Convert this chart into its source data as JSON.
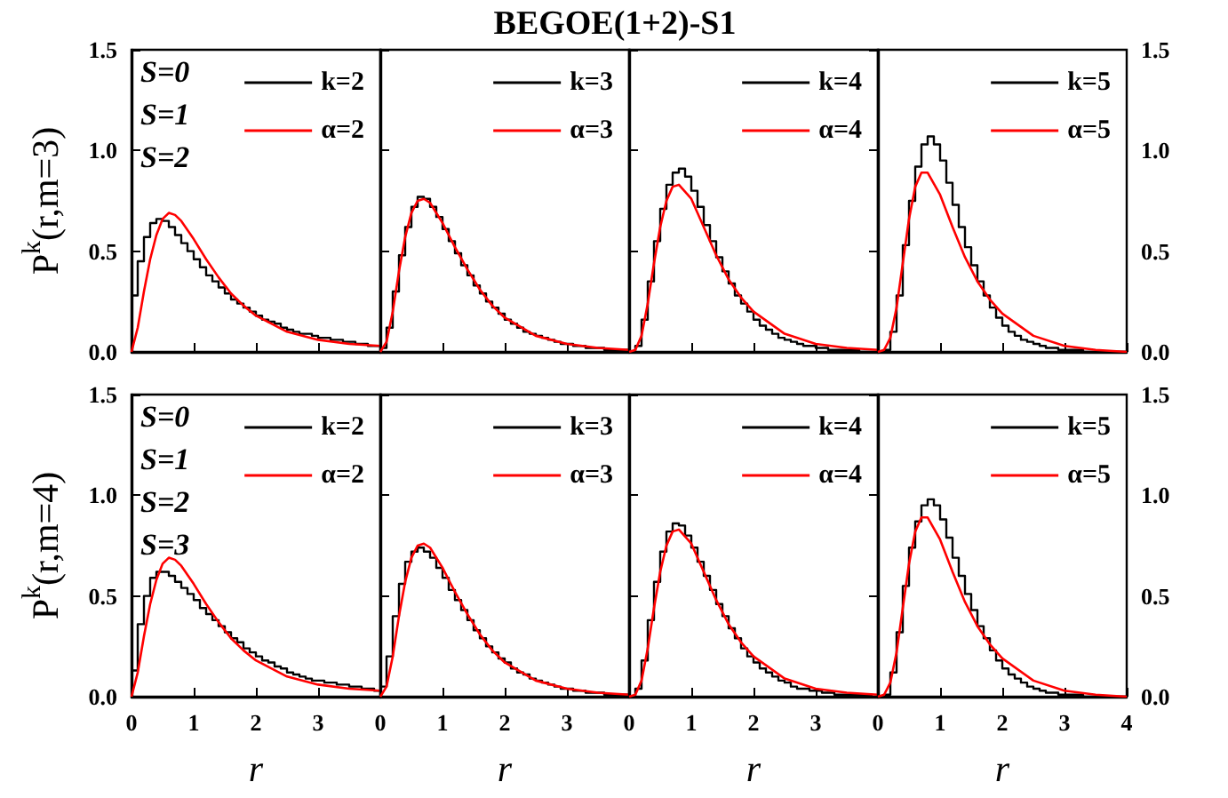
{
  "chart_data": [
    {
      "type": "histogram",
      "ylabel": "P$^{k}$(r,m=3)",
      "annotations": [
        "S=0",
        "S=1",
        "S=2"
      ],
      "legend": "top right",
      "tick_labels": "y",
      "xlim": [
        0,
        4
      ],
      "xticks": [
        0,
        1,
        2,
        3,
        4
      ],
      "ylim": [
        0,
        1.5
      ],
      "yticks": [
        {
          "value": 0,
          "label": "0.0"
        },
        {
          "value": 0.5,
          "label": "0.5"
        },
        {
          "value": 1,
          "label": "1.0"
        },
        {
          "value": 1.5,
          "label": "1.5"
        }
      ],
      "bins": [
        0,
        0.1,
        0.2,
        0.3,
        0.4,
        0.5,
        0.6,
        0.7,
        0.8,
        0.9,
        1,
        1.1,
        1.2,
        1.3,
        1.4,
        1.5,
        1.6,
        1.7,
        1.8,
        1.9,
        2,
        2.1,
        2.2,
        2.3,
        2.4,
        2.5,
        2.6,
        2.7,
        2.8,
        2.9,
        3,
        3.1,
        3.2,
        3.3,
        3.4,
        3.5,
        3.6,
        3.7,
        3.8,
        3.9,
        4
      ],
      "series": [
        {
          "name": "k=2",
          "color": "#000000",
          "values": [
            0.28,
            0.45,
            0.57,
            0.64,
            0.66,
            0.65,
            0.62,
            0.58,
            0.54,
            0.5,
            0.46,
            0.42,
            0.38,
            0.35,
            0.32,
            0.29,
            0.26,
            0.24,
            0.22,
            0.2,
            0.18,
            0.16,
            0.15,
            0.14,
            0.12,
            0.11,
            0.1,
            0.09,
            0.09,
            0.08,
            0.07,
            0.07,
            0.06,
            0.06,
            0.05,
            0.05,
            0.04,
            0.04,
            0.03,
            0.03
          ]
        },
        {
          "name": "α=2",
          "type": "line",
          "color": "#ff0000",
          "x": [
            0,
            0.1,
            0.2,
            0.3,
            0.4,
            0.5,
            0.6,
            0.7,
            0.8,
            1,
            1.2,
            1.4,
            1.6,
            1.8,
            2,
            2.5,
            3,
            3.5,
            4
          ],
          "values": [
            0,
            0.12,
            0.3,
            0.46,
            0.58,
            0.66,
            0.69,
            0.68,
            0.65,
            0.56,
            0.46,
            0.37,
            0.29,
            0.23,
            0.18,
            0.1,
            0.06,
            0.04,
            0.03
          ]
        }
      ]
    },
    {
      "type": "histogram",
      "title": "BEGOE(1+2)-S1",
      "legend": "top right",
      "tick_labels": false,
      "xlim": [
        0,
        4
      ],
      "xticks": [
        0,
        1,
        2,
        3,
        4
      ],
      "ylim": [
        0,
        1.5
      ],
      "yticks": [
        0,
        0.5,
        1,
        1.5
      ],
      "bins": [
        0,
        0.1,
        0.2,
        0.3,
        0.4,
        0.5,
        0.6,
        0.7,
        0.8,
        0.9,
        1,
        1.1,
        1.2,
        1.3,
        1.4,
        1.5,
        1.6,
        1.7,
        1.8,
        1.9,
        2,
        2.1,
        2.2,
        2.3,
        2.4,
        2.5,
        2.6,
        2.7,
        2.8,
        2.9,
        3,
        3.1,
        3.2,
        3.3,
        3.4,
        3.5,
        3.6,
        3.7,
        3.8,
        3.9,
        4
      ],
      "series": [
        {
          "name": "k=3",
          "color": "#000000",
          "values": [
            0.02,
            0.12,
            0.3,
            0.48,
            0.62,
            0.72,
            0.77,
            0.76,
            0.72,
            0.67,
            0.61,
            0.55,
            0.49,
            0.43,
            0.38,
            0.33,
            0.29,
            0.25,
            0.22,
            0.19,
            0.16,
            0.14,
            0.12,
            0.1,
            0.09,
            0.08,
            0.07,
            0.06,
            0.05,
            0.04,
            0.04,
            0.03,
            0.03,
            0.02,
            0.02,
            0.02,
            0.01,
            0.01,
            0.01,
            0.01
          ]
        },
        {
          "name": "α=3",
          "type": "line",
          "color": "#ff0000",
          "x": [
            0,
            0.1,
            0.2,
            0.3,
            0.4,
            0.5,
            0.6,
            0.7,
            0.8,
            1,
            1.2,
            1.4,
            1.6,
            1.8,
            2,
            2.5,
            3,
            3.5,
            4
          ],
          "values": [
            0,
            0.05,
            0.2,
            0.4,
            0.57,
            0.69,
            0.75,
            0.76,
            0.74,
            0.64,
            0.52,
            0.41,
            0.31,
            0.23,
            0.17,
            0.08,
            0.04,
            0.02,
            0.01
          ]
        }
      ]
    },
    {
      "type": "histogram",
      "legend": "top right",
      "tick_labels": false,
      "xlim": [
        0,
        4
      ],
      "xticks": [
        0,
        1,
        2,
        3,
        4
      ],
      "ylim": [
        0,
        1.5
      ],
      "yticks": [
        0,
        0.5,
        1,
        1.5
      ],
      "bins": [
        0,
        0.1,
        0.2,
        0.3,
        0.4,
        0.5,
        0.6,
        0.7,
        0.8,
        0.9,
        1,
        1.1,
        1.2,
        1.3,
        1.4,
        1.5,
        1.6,
        1.7,
        1.8,
        1.9,
        2,
        2.1,
        2.2,
        2.3,
        2.4,
        2.5,
        2.6,
        2.7,
        2.8,
        2.9,
        3,
        3.1,
        3.2,
        3.3,
        3.4,
        3.5,
        3.6,
        3.7,
        3.8,
        3.9,
        4
      ],
      "series": [
        {
          "name": "k=4",
          "color": "#000000",
          "values": [
            0,
            0.03,
            0.16,
            0.35,
            0.55,
            0.71,
            0.83,
            0.89,
            0.91,
            0.87,
            0.8,
            0.72,
            0.63,
            0.55,
            0.47,
            0.4,
            0.34,
            0.28,
            0.24,
            0.2,
            0.16,
            0.13,
            0.11,
            0.09,
            0.07,
            0.06,
            0.05,
            0.04,
            0.03,
            0.03,
            0.02,
            0.02,
            0.01,
            0.01,
            0.01,
            0.01,
            0.01,
            0,
            0,
            0
          ]
        },
        {
          "name": "α=4",
          "type": "line",
          "color": "#ff0000",
          "x": [
            0,
            0.1,
            0.2,
            0.3,
            0.4,
            0.5,
            0.6,
            0.7,
            0.8,
            1,
            1.2,
            1.4,
            1.6,
            1.8,
            2,
            2.5,
            3,
            3.5,
            4
          ],
          "values": [
            0,
            0.01,
            0.08,
            0.24,
            0.44,
            0.62,
            0.75,
            0.82,
            0.83,
            0.76,
            0.62,
            0.48,
            0.36,
            0.27,
            0.2,
            0.09,
            0.04,
            0.02,
            0.01
          ]
        }
      ]
    },
    {
      "type": "histogram",
      "legend": "top right",
      "tick_labels": "y",
      "xlim": [
        0,
        4
      ],
      "xticks": [
        0,
        1,
        2,
        3,
        4
      ],
      "y2lim": [
        0,
        1.5
      ],
      "y2ticks": [
        {
          "value": 0,
          "label": "0.0"
        },
        {
          "value": 0.5,
          "label": "0.5"
        },
        {
          "value": 1,
          "label": "1.0"
        },
        {
          "value": 1.5,
          "label": "1.5"
        }
      ],
      "bins": [
        0,
        0.1,
        0.2,
        0.3,
        0.4,
        0.5,
        0.6,
        0.7,
        0.8,
        0.9,
        1,
        1.1,
        1.2,
        1.3,
        1.4,
        1.5,
        1.6,
        1.7,
        1.8,
        1.9,
        2,
        2.1,
        2.2,
        2.3,
        2.4,
        2.5,
        2.6,
        2.7,
        2.8,
        2.9,
        3,
        3.1,
        3.2,
        3.3,
        3.4,
        3.5,
        3.6,
        3.7,
        3.8,
        3.9,
        4
      ],
      "series": [
        {
          "name": "k=5",
          "color": "#000000",
          "axis": "y2",
          "values": [
            0,
            0.01,
            0.1,
            0.28,
            0.53,
            0.75,
            0.92,
            1.03,
            1.07,
            1.03,
            0.95,
            0.84,
            0.73,
            0.62,
            0.52,
            0.43,
            0.35,
            0.28,
            0.22,
            0.17,
            0.13,
            0.1,
            0.08,
            0.06,
            0.05,
            0.04,
            0.03,
            0.02,
            0.02,
            0.01,
            0.01,
            0.01,
            0.01,
            0,
            0,
            0,
            0,
            0,
            0,
            0
          ]
        },
        {
          "name": "α=5",
          "type": "line",
          "color": "#ff0000",
          "axis": "y2",
          "x": [
            0,
            0.1,
            0.2,
            0.3,
            0.4,
            0.5,
            0.6,
            0.7,
            0.8,
            1,
            1.2,
            1.4,
            1.6,
            1.8,
            2,
            2.5,
            3,
            3.5,
            4
          ],
          "values": [
            0,
            0.01,
            0.07,
            0.22,
            0.44,
            0.66,
            0.82,
            0.89,
            0.89,
            0.78,
            0.62,
            0.47,
            0.35,
            0.26,
            0.19,
            0.08,
            0.03,
            0.01,
            0
          ]
        }
      ]
    },
    {
      "type": "histogram",
      "ylabel": "P$^{k}$(r,m=4)",
      "xlabel": "r",
      "annotations": [
        "S=0",
        "S=1",
        "S=2",
        "S=3"
      ],
      "legend": "top right",
      "xlim": [
        0,
        4
      ],
      "xticks": [
        0,
        1,
        2,
        3
      ],
      "ylim": [
        0,
        1.5
      ],
      "yticks": [
        {
          "value": 0,
          "label": "0.0"
        },
        {
          "value": 0.5,
          "label": "0.5"
        },
        {
          "value": 1,
          "label": "1.0"
        },
        {
          "value": 1.5,
          "label": "1.5"
        }
      ],
      "bins": [
        0,
        0.1,
        0.2,
        0.3,
        0.4,
        0.5,
        0.6,
        0.7,
        0.8,
        0.9,
        1,
        1.1,
        1.2,
        1.3,
        1.4,
        1.5,
        1.6,
        1.7,
        1.8,
        1.9,
        2,
        2.1,
        2.2,
        2.3,
        2.4,
        2.5,
        2.6,
        2.7,
        2.8,
        2.9,
        3,
        3.1,
        3.2,
        3.3,
        3.4,
        3.5,
        3.6,
        3.7,
        3.8,
        3.9,
        4
      ],
      "series": [
        {
          "name": "k=2",
          "color": "#000000",
          "values": [
            0.13,
            0.36,
            0.5,
            0.59,
            0.62,
            0.62,
            0.6,
            0.57,
            0.54,
            0.51,
            0.48,
            0.44,
            0.41,
            0.38,
            0.35,
            0.32,
            0.29,
            0.27,
            0.24,
            0.22,
            0.2,
            0.18,
            0.17,
            0.15,
            0.14,
            0.12,
            0.11,
            0.1,
            0.09,
            0.08,
            0.08,
            0.07,
            0.07,
            0.06,
            0.06,
            0.05,
            0.05,
            0.04,
            0.04,
            0.03
          ]
        },
        {
          "name": "α=2",
          "type": "line",
          "color": "#ff0000",
          "x": [
            0,
            0.1,
            0.2,
            0.3,
            0.4,
            0.5,
            0.6,
            0.7,
            0.8,
            1,
            1.2,
            1.4,
            1.6,
            1.8,
            2,
            2.5,
            3,
            3.5,
            4
          ],
          "values": [
            0,
            0.12,
            0.3,
            0.46,
            0.58,
            0.66,
            0.69,
            0.68,
            0.65,
            0.56,
            0.46,
            0.37,
            0.29,
            0.23,
            0.18,
            0.1,
            0.06,
            0.04,
            0.03
          ]
        }
      ]
    },
    {
      "type": "histogram",
      "xlabel": "r",
      "legend": "top right",
      "tick_labels": "x",
      "xlim": [
        0,
        4
      ],
      "xticks": [
        0,
        1,
        2,
        3
      ],
      "ylim": [
        0,
        1.5
      ],
      "yticks": [
        0,
        0.5,
        1,
        1.5
      ],
      "bins": [
        0,
        0.1,
        0.2,
        0.3,
        0.4,
        0.5,
        0.6,
        0.7,
        0.8,
        0.9,
        1,
        1.1,
        1.2,
        1.3,
        1.4,
        1.5,
        1.6,
        1.7,
        1.8,
        1.9,
        2,
        2.1,
        2.2,
        2.3,
        2.4,
        2.5,
        2.6,
        2.7,
        2.8,
        2.9,
        3,
        3.1,
        3.2,
        3.3,
        3.4,
        3.5,
        3.6,
        3.7,
        3.8,
        3.9,
        4
      ],
      "series": [
        {
          "name": "k=3",
          "color": "#000000",
          "values": [
            0.05,
            0.2,
            0.4,
            0.56,
            0.67,
            0.72,
            0.74,
            0.72,
            0.69,
            0.64,
            0.59,
            0.53,
            0.48,
            0.43,
            0.38,
            0.33,
            0.29,
            0.25,
            0.22,
            0.19,
            0.17,
            0.14,
            0.12,
            0.11,
            0.09,
            0.08,
            0.07,
            0.06,
            0.05,
            0.04,
            0.04,
            0.03,
            0.03,
            0.02,
            0.02,
            0.02,
            0.01,
            0.01,
            0.01,
            0.01
          ]
        },
        {
          "name": "α=3",
          "type": "line",
          "color": "#ff0000",
          "x": [
            0,
            0.1,
            0.2,
            0.3,
            0.4,
            0.5,
            0.6,
            0.7,
            0.8,
            1,
            1.2,
            1.4,
            1.6,
            1.8,
            2,
            2.5,
            3,
            3.5,
            4
          ],
          "values": [
            0,
            0.05,
            0.2,
            0.4,
            0.57,
            0.69,
            0.75,
            0.76,
            0.74,
            0.64,
            0.52,
            0.41,
            0.31,
            0.23,
            0.17,
            0.08,
            0.04,
            0.02,
            0.01
          ]
        }
      ]
    },
    {
      "type": "histogram",
      "xlabel": "r",
      "legend": "top right",
      "tick_labels": "x",
      "xlim": [
        0,
        4
      ],
      "xticks": [
        0,
        1,
        2,
        3
      ],
      "ylim": [
        0,
        1.5
      ],
      "yticks": [
        0,
        0.5,
        1,
        1.5
      ],
      "bins": [
        0,
        0.1,
        0.2,
        0.3,
        0.4,
        0.5,
        0.6,
        0.7,
        0.8,
        0.9,
        1,
        1.1,
        1.2,
        1.3,
        1.4,
        1.5,
        1.6,
        1.7,
        1.8,
        1.9,
        2,
        2.1,
        2.2,
        2.3,
        2.4,
        2.5,
        2.6,
        2.7,
        2.8,
        2.9,
        3,
        3.1,
        3.2,
        3.3,
        3.4,
        3.5,
        3.6,
        3.7,
        3.8,
        3.9,
        4
      ],
      "series": [
        {
          "name": "k=4",
          "color": "#000000",
          "values": [
            0,
            0.04,
            0.18,
            0.38,
            0.57,
            0.72,
            0.82,
            0.86,
            0.85,
            0.8,
            0.74,
            0.67,
            0.6,
            0.53,
            0.46,
            0.4,
            0.34,
            0.29,
            0.24,
            0.2,
            0.17,
            0.14,
            0.12,
            0.1,
            0.08,
            0.07,
            0.05,
            0.04,
            0.04,
            0.03,
            0.03,
            0.02,
            0.02,
            0.01,
            0.01,
            0.01,
            0.01,
            0.01,
            0.01,
            0
          ]
        },
        {
          "name": "α=4",
          "type": "line",
          "color": "#ff0000",
          "x": [
            0,
            0.1,
            0.2,
            0.3,
            0.4,
            0.5,
            0.6,
            0.7,
            0.8,
            1,
            1.2,
            1.4,
            1.6,
            1.8,
            2,
            2.5,
            3,
            3.5,
            4
          ],
          "values": [
            0,
            0.01,
            0.08,
            0.24,
            0.44,
            0.62,
            0.75,
            0.82,
            0.83,
            0.76,
            0.62,
            0.48,
            0.36,
            0.27,
            0.2,
            0.09,
            0.04,
            0.02,
            0.01
          ]
        }
      ]
    },
    {
      "type": "histogram",
      "xlabel": "r",
      "legend": "top right",
      "xlim": [
        0,
        4
      ],
      "xticks": [
        0,
        1,
        2,
        3,
        4
      ],
      "y2lim": [
        0,
        1.5
      ],
      "y2ticks": [
        {
          "value": 0,
          "label": "0.0"
        },
        {
          "value": 0.5,
          "label": "0.5"
        },
        {
          "value": 1,
          "label": "1.0"
        },
        {
          "value": 1.5,
          "label": "1.5"
        }
      ],
      "bins": [
        0,
        0.1,
        0.2,
        0.3,
        0.4,
        0.5,
        0.6,
        0.7,
        0.8,
        0.9,
        1,
        1.1,
        1.2,
        1.3,
        1.4,
        1.5,
        1.6,
        1.7,
        1.8,
        1.9,
        2,
        2.1,
        2.2,
        2.3,
        2.4,
        2.5,
        2.6,
        2.7,
        2.8,
        2.9,
        3,
        3.1,
        3.2,
        3.3,
        3.4,
        3.5,
        3.6,
        3.7,
        3.8,
        3.9,
        4
      ],
      "series": [
        {
          "name": "k=5",
          "color": "#000000",
          "axis": "y2",
          "values": [
            0,
            0.01,
            0.12,
            0.32,
            0.55,
            0.74,
            0.87,
            0.95,
            0.98,
            0.95,
            0.88,
            0.79,
            0.69,
            0.6,
            0.51,
            0.43,
            0.35,
            0.29,
            0.23,
            0.18,
            0.14,
            0.11,
            0.09,
            0.07,
            0.05,
            0.04,
            0.03,
            0.02,
            0.02,
            0.01,
            0.01,
            0.01,
            0.01,
            0,
            0,
            0,
            0,
            0,
            0,
            0
          ]
        },
        {
          "name": "α=5",
          "type": "line",
          "color": "#ff0000",
          "axis": "y2",
          "x": [
            0,
            0.1,
            0.2,
            0.3,
            0.4,
            0.5,
            0.6,
            0.7,
            0.8,
            1,
            1.2,
            1.4,
            1.6,
            1.8,
            2,
            2.5,
            3,
            3.5,
            4
          ],
          "values": [
            0,
            0.01,
            0.07,
            0.22,
            0.44,
            0.66,
            0.82,
            0.89,
            0.89,
            0.78,
            0.62,
            0.47,
            0.35,
            0.26,
            0.19,
            0.08,
            0.03,
            0.01,
            0
          ]
        }
      ]
    }
  ]
}
